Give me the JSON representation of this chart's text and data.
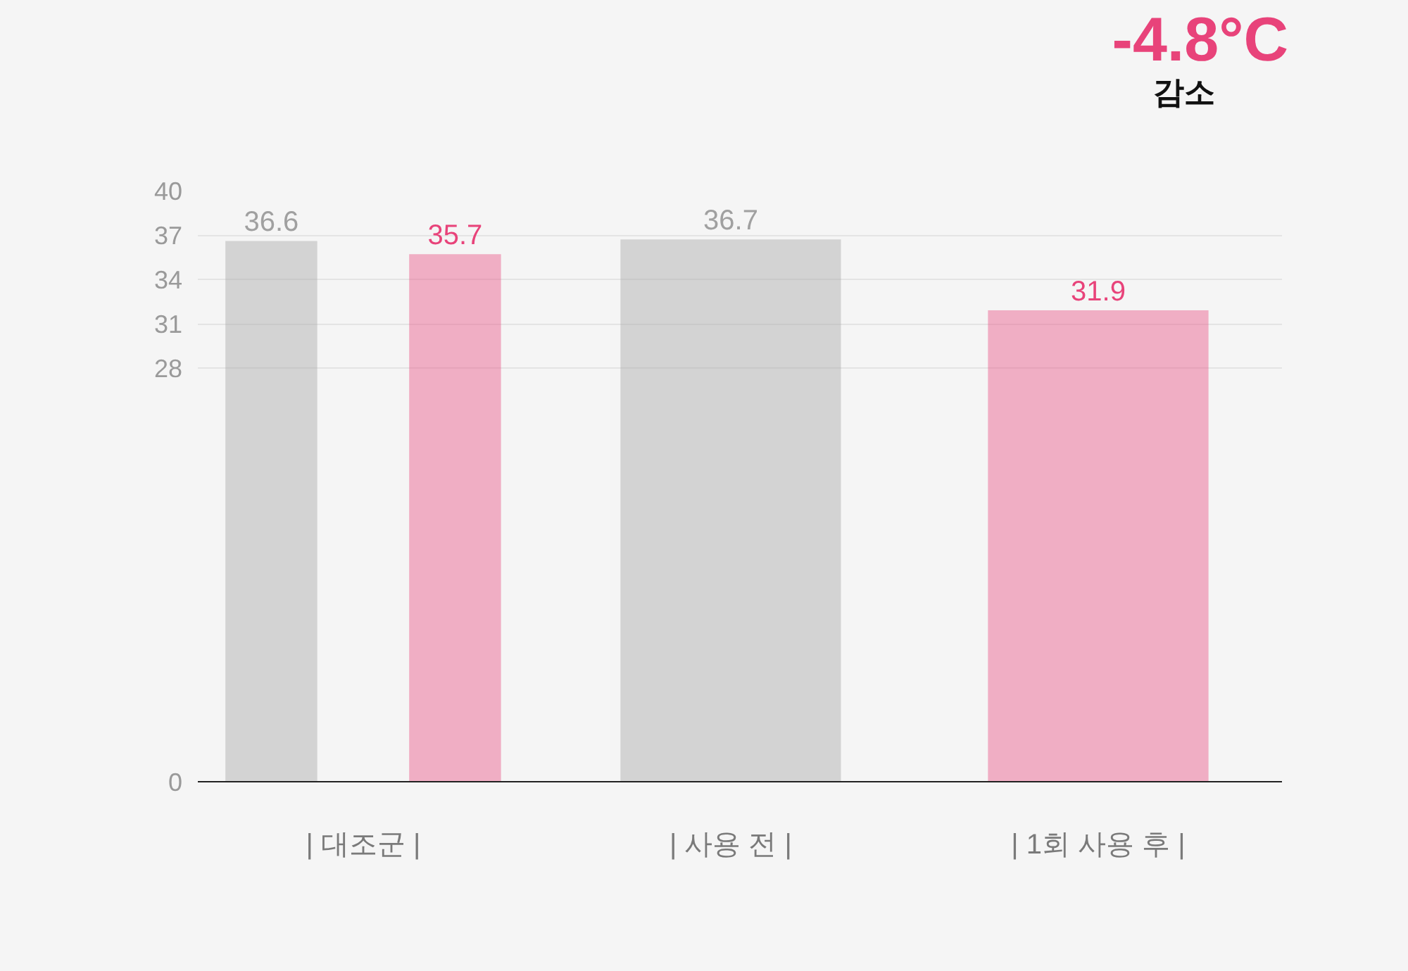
{
  "chart_data": {
    "type": "bar",
    "categories": [
      "| 대조군 |",
      "| 사용 전 |",
      "| 1회 사용 후 |"
    ],
    "series": [
      {
        "color": "#a0a0a0",
        "values": [
          36.6,
          36.7,
          null
        ]
      },
      {
        "color": "#e8437a",
        "values": [
          35.7,
          null,
          31.9
        ]
      }
    ],
    "ylim": [
      0,
      40
    ],
    "yticks": [
      0,
      28,
      31,
      34,
      37,
      40
    ],
    "grid": "y",
    "data_labels": true,
    "annotations": [
      "-4.8°C",
      "감소"
    ]
  }
}
